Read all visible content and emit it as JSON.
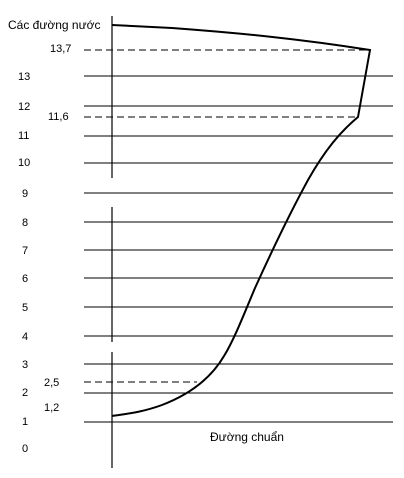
{
  "diagram": {
    "title": "Các đường nước",
    "baseline_label": "Đường chuẩn",
    "level_labels": [
      "13",
      "12",
      "11",
      "10",
      "9",
      "8",
      "7",
      "6",
      "5",
      "4",
      "3",
      "2",
      "1",
      "0"
    ],
    "marked_levels": [
      {
        "label": "13,7",
        "value": 13.7
      },
      {
        "label": "11,6",
        "value": 11.6
      },
      {
        "label": "2,5",
        "value": 2.5
      },
      {
        "label": "1,2",
        "value": 1.2
      }
    ],
    "colors": {
      "line": "#000000",
      "background": "#ffffff"
    }
  }
}
